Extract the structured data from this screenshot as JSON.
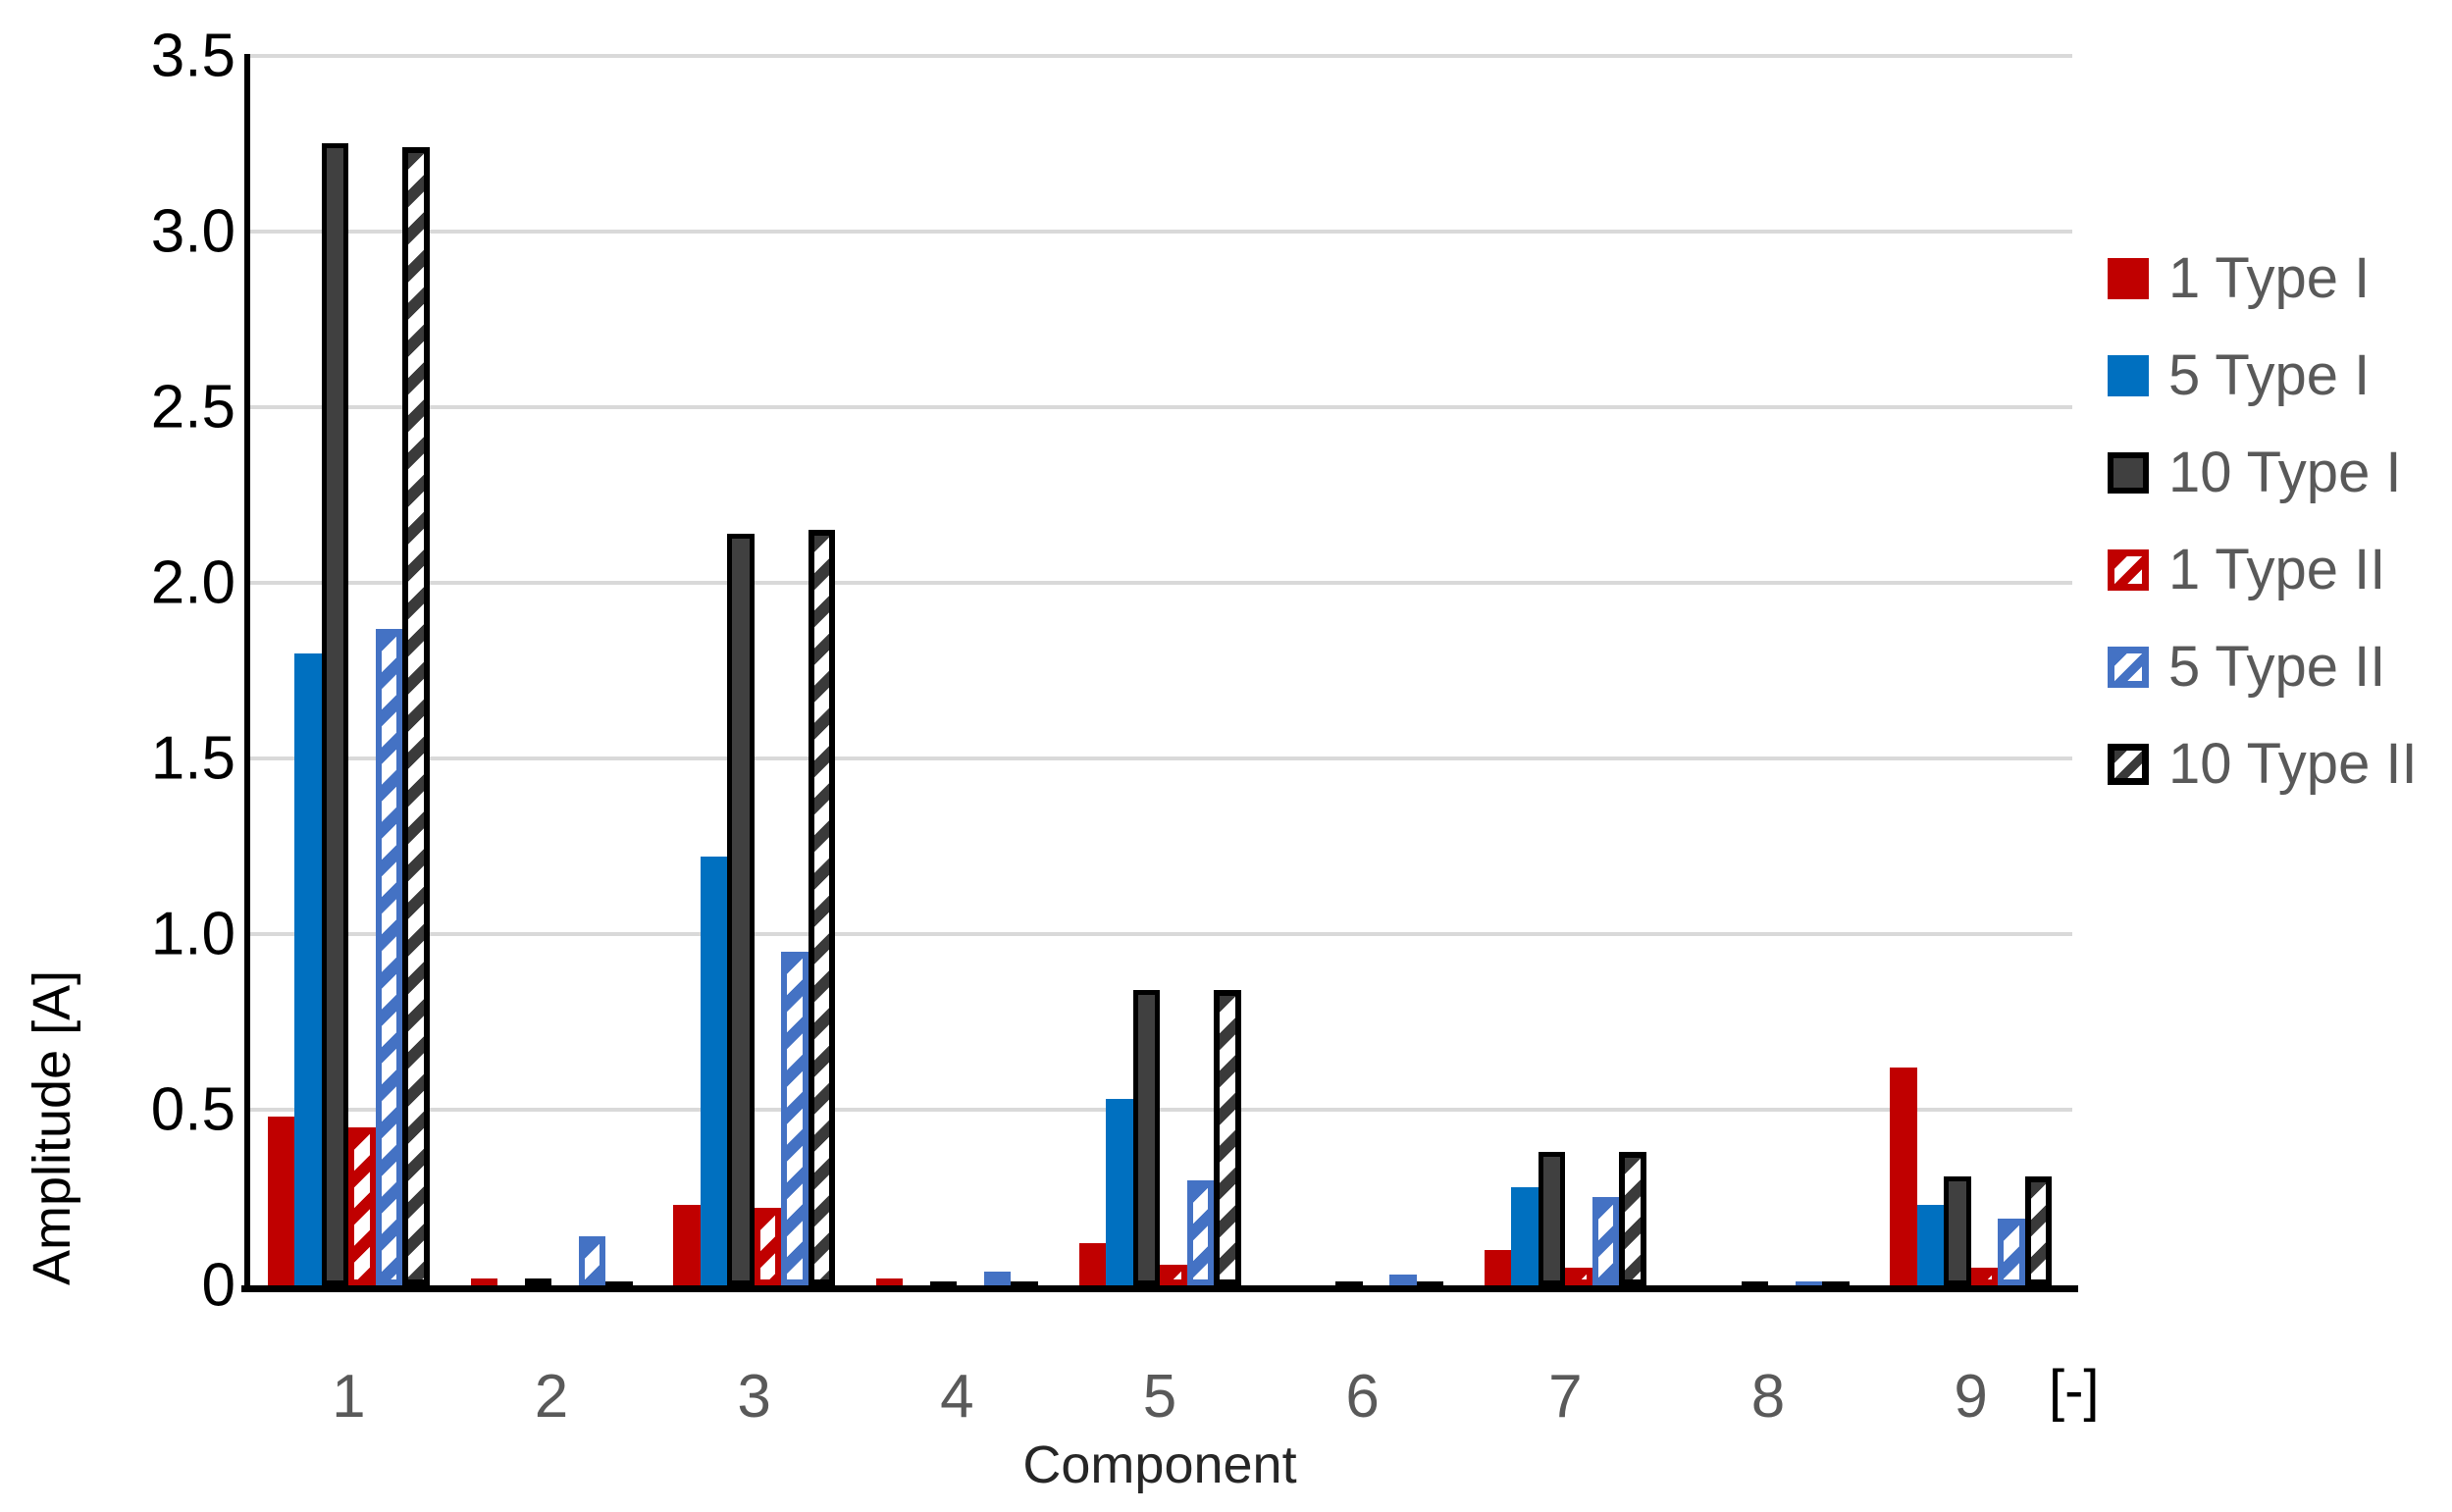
{
  "chart_data": {
    "type": "bar",
    "title": "",
    "categories": [
      "1",
      "2",
      "3",
      "4",
      "5",
      "6",
      "7",
      "8",
      "9"
    ],
    "series": [
      {
        "name": "1 Type I",
        "pattern": "solid",
        "color": "#C00000",
        "values": [
          0.48,
          0.02,
          0.23,
          0.02,
          0.12,
          0,
          0.1,
          0,
          0.62
        ]
      },
      {
        "name": "5 Type I",
        "pattern": "solid",
        "color": "#0070C0",
        "values": [
          1.8,
          0,
          1.22,
          0,
          0.53,
          0,
          0.28,
          0,
          0.23
        ]
      },
      {
        "name": "10 Type I",
        "pattern": "solid",
        "color": "#404040",
        "border_color": "#000000",
        "values": [
          3.25,
          0.02,
          2.14,
          0.01,
          0.84,
          0.01,
          0.38,
          0.01,
          0.31
        ]
      },
      {
        "name": "1 Type II",
        "pattern": "hatch",
        "color": "#C00000",
        "border_color": "#C00000",
        "values": [
          0.45,
          0,
          0.22,
          0,
          0.06,
          0,
          0.05,
          0,
          0.05
        ]
      },
      {
        "name": "5 Type II",
        "pattern": "hatch",
        "color": "#4472C4",
        "border_color": "#4472C4",
        "values": [
          1.87,
          0.14,
          0.95,
          0.04,
          0.3,
          0.03,
          0.25,
          0.01,
          0.19
        ]
      },
      {
        "name": "10 Type II",
        "pattern": "hatch",
        "color": "#3A3A3A",
        "border_color": "#000000",
        "values": [
          3.24,
          0.01,
          2.15,
          0.01,
          0.84,
          0.01,
          0.38,
          0.01,
          0.31
        ]
      }
    ],
    "xlabel": "Component",
    "x_unit_label": "[-]",
    "ylabel": "Amplitude [A]",
    "ylim": [
      0,
      3.5
    ],
    "yticks": [
      "0",
      "0.5",
      "1.0",
      "1.5",
      "2.0",
      "2.5",
      "3.0",
      "3.5"
    ],
    "grid": true,
    "legend_position": "right"
  },
  "style_colors": {
    "gridline": "#D9D9D9",
    "axis_line": "#000000",
    "y_tick_text": "#000000",
    "x_tick_text": "#595959",
    "legend_text": "#595959",
    "hatch_background": "#FFFFFF"
  }
}
